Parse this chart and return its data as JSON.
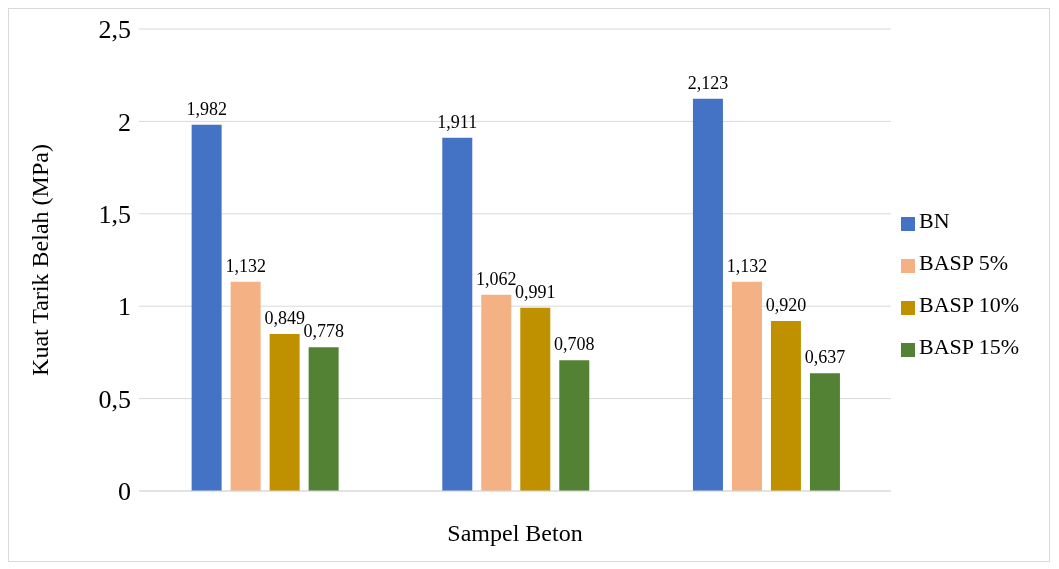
{
  "chart_data": {
    "type": "bar",
    "xlabel": "Sampel Beton",
    "ylabel": "Kuat Tarik Belah (MPa)",
    "categories": [
      null,
      null,
      null
    ],
    "series": [
      {
        "name": "BN",
        "color": "#4472c4",
        "values": [
          1.982,
          1.911,
          2.123
        ],
        "value_labels": [
          "1,982",
          "1,911",
          "2,123"
        ]
      },
      {
        "name": "BASP 5%",
        "color": "#f4b183",
        "values": [
          1.132,
          1.062,
          1.132
        ],
        "value_labels": [
          "1,132",
          "1,062",
          "1,132"
        ]
      },
      {
        "name": "BASP 10%",
        "color": "#bf9000",
        "values": [
          0.849,
          0.991,
          0.92
        ],
        "value_labels": [
          "0,849",
          "0,991",
          "0,920"
        ]
      },
      {
        "name": "BASP 15%",
        "color": "#548235",
        "values": [
          0.778,
          0.708,
          0.637
        ],
        "value_labels": [
          "0,778",
          "0,708",
          "0,637"
        ]
      }
    ],
    "ylim": [
      0,
      2.5
    ],
    "yticks": [
      0,
      {
        "value": 0.5,
        "label": "0,5"
      },
      1,
      {
        "value": 1.5,
        "label": "1,5"
      },
      2,
      {
        "value": 2.5,
        "label": "2,5"
      }
    ],
    "grid": "y",
    "legend": "right"
  }
}
